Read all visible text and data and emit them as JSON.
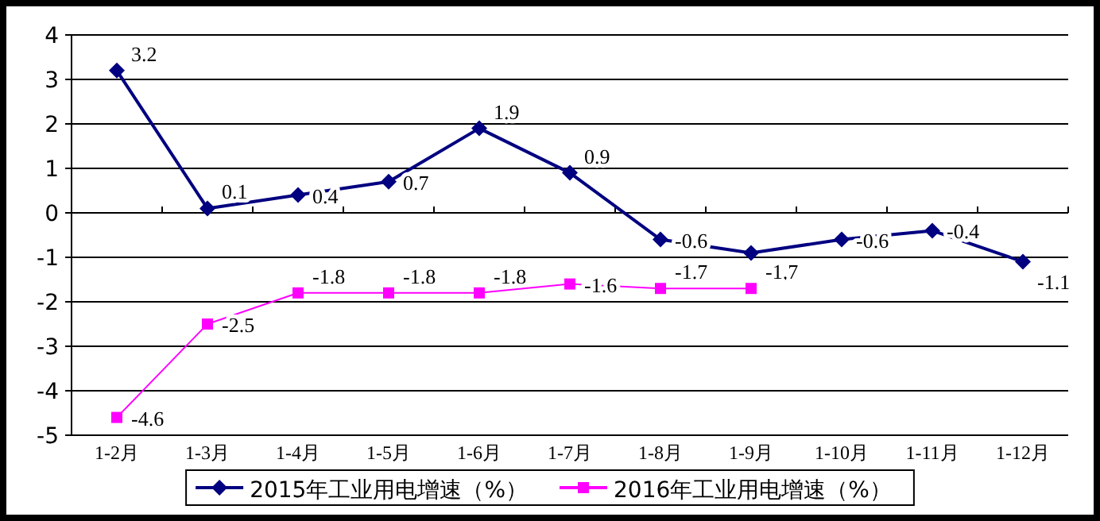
{
  "chart_data": {
    "type": "line",
    "categories": [
      "1-2月",
      "1-3月",
      "1-4月",
      "1-5月",
      "1-6月",
      "1-7月",
      "1-8月",
      "1-9月",
      "1-10月",
      "1-11月",
      "1-12月"
    ],
    "series": [
      {
        "name": "2015年工业用电增速（%）",
        "color": "#000080",
        "marker": "diamond",
        "values": [
          3.2,
          0.1,
          0.4,
          0.7,
          1.9,
          0.9,
          -0.6,
          -0.9,
          -0.6,
          -0.4,
          -1.1
        ]
      },
      {
        "name": "2016年工业用电增速（%）",
        "color": "#ff00ff",
        "marker": "square",
        "values": [
          -4.6,
          -2.5,
          -1.8,
          -1.8,
          -1.8,
          -1.6,
          -1.7,
          -1.7,
          null,
          null,
          null
        ]
      }
    ],
    "ylim": [
      -5,
      4
    ],
    "yticks": [
      -5,
      -4,
      -3,
      -2,
      -1,
      0,
      1,
      2,
      3,
      4
    ],
    "grid": "y",
    "legend": "bottom",
    "data_labels": true
  }
}
